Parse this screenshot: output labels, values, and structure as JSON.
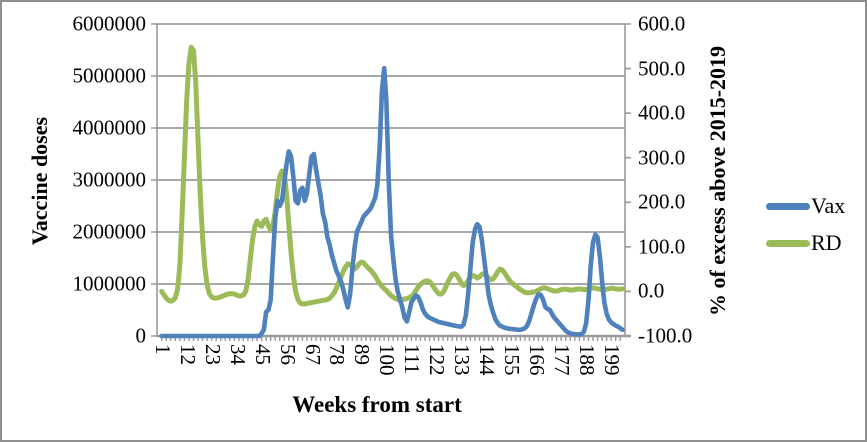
{
  "figure": {
    "kind": "embedded-excel-line-chart",
    "background": "#ffffff",
    "border_color": "#8f8f8f"
  },
  "colors": {
    "vax_line": "#4F81BD",
    "rd_line": "#9BBB59",
    "grid": "#8c8c8c",
    "axis": "#9a9a9a",
    "text": "#000000"
  },
  "legend": {
    "position": "right",
    "entries": [
      {
        "label": "Vax",
        "color": "#4F81BD"
      },
      {
        "label": "RD",
        "color": "#9BBB59"
      }
    ]
  },
  "chart_data": {
    "type": "line",
    "title": "",
    "xlabel": "Weeks from start",
    "ylabel_left": "Vaccine doses",
    "ylabel_right": "% of excess above 2015-2019",
    "grid": "horizontal-only",
    "legend_position": "right",
    "x_axis": {
      "start_week": 1,
      "end_week": 204,
      "interval": 1,
      "tick_labels": [
        "1",
        "12",
        "23",
        "34",
        "45",
        "56",
        "67",
        "78",
        "89",
        "100",
        "111",
        "122",
        "133",
        "144",
        "155",
        "166",
        "177",
        "188",
        "199"
      ]
    },
    "left_axis": {
      "min": 0,
      "max": 6000000,
      "tick_step": 1000000,
      "tick_labels": [
        "0",
        "1000000",
        "2000000",
        "3000000",
        "4000000",
        "5000000",
        "6000000"
      ]
    },
    "right_axis": {
      "min": -100,
      "max": 600,
      "tick_step": 100,
      "tick_labels": [
        "-100.0",
        "0.0",
        "100.0",
        "200.0",
        "300.0",
        "400.0",
        "500.0",
        "600.0"
      ]
    },
    "series": [
      {
        "name": "Vax",
        "axis": "left",
        "color": "#4F81BD",
        "values": [
          0,
          0,
          0,
          0,
          0,
          0,
          0,
          0,
          0,
          0,
          0,
          0,
          0,
          0,
          0,
          0,
          0,
          0,
          0,
          0,
          0,
          0,
          0,
          0,
          0,
          0,
          0,
          0,
          0,
          0,
          0,
          0,
          0,
          0,
          0,
          0,
          0,
          0,
          0,
          0,
          0,
          0,
          0,
          0,
          50000,
          120000,
          460000,
          500000,
          700000,
          1500000,
          2250000,
          2600000,
          2500000,
          2600000,
          2950000,
          3300000,
          3550000,
          3450000,
          3050000,
          2600000,
          2550000,
          2800000,
          2850000,
          2600000,
          2750000,
          3100000,
          3450000,
          3500000,
          3200000,
          2950000,
          2700000,
          2350000,
          2200000,
          1900000,
          1750000,
          1550000,
          1400000,
          1250000,
          1150000,
          1050000,
          900000,
          700000,
          550000,
          800000,
          1300000,
          1700000,
          2000000,
          2100000,
          2200000,
          2300000,
          2350000,
          2400000,
          2450000,
          2550000,
          2650000,
          2900000,
          3600000,
          4700000,
          5150000,
          4500000,
          3000000,
          1950000,
          1500000,
          1100000,
          850000,
          700000,
          550000,
          350000,
          280000,
          450000,
          650000,
          720000,
          780000,
          750000,
          650000,
          520000,
          430000,
          380000,
          350000,
          330000,
          310000,
          290000,
          270000,
          260000,
          250000,
          240000,
          230000,
          220000,
          210000,
          200000,
          190000,
          185000,
          180000,
          220000,
          400000,
          800000,
          1300000,
          1800000,
          2050000,
          2150000,
          2100000,
          1850000,
          1500000,
          1150000,
          800000,
          600000,
          450000,
          320000,
          250000,
          200000,
          180000,
          160000,
          150000,
          140000,
          135000,
          130000,
          125000,
          120000,
          120000,
          130000,
          150000,
          200000,
          300000,
          450000,
          600000,
          720000,
          800000,
          790000,
          700000,
          560000,
          520000,
          500000,
          420000,
          350000,
          300000,
          250000,
          200000,
          150000,
          100000,
          70000,
          50000,
          40000,
          35000,
          30000,
          30000,
          40000,
          80000,
          250000,
          700000,
          1350000,
          1800000,
          1950000,
          1900000,
          1550000,
          1050000,
          650000,
          430000,
          320000,
          260000,
          230000,
          200000,
          180000,
          150000,
          120000
        ]
      },
      {
        "name": "RD",
        "axis": "right",
        "color": "#9BBB59",
        "values": [
          0,
          -8,
          -15,
          -20,
          -22,
          -20,
          -14,
          5,
          60,
          170,
          300,
          430,
          510,
          548,
          540,
          470,
          340,
          215,
          120,
          55,
          15,
          -5,
          -12,
          -15,
          -15,
          -14,
          -12,
          -10,
          -8,
          -6,
          -5,
          -5,
          -6,
          -8,
          -10,
          -10,
          -8,
          0,
          25,
          70,
          115,
          145,
          158,
          150,
          146,
          158,
          162,
          148,
          136,
          146,
          180,
          225,
          258,
          270,
          262,
          220,
          150,
          85,
          35,
          0,
          -18,
          -26,
          -28,
          -28,
          -27,
          -26,
          -25,
          -24,
          -23,
          -22,
          -21,
          -20,
          -19,
          -18,
          -15,
          -10,
          -3,
          8,
          20,
          32,
          45,
          55,
          62,
          60,
          54,
          50,
          55,
          62,
          66,
          64,
          58,
          52,
          48,
          42,
          35,
          26,
          18,
          12,
          6,
          2,
          -4,
          -9,
          -13,
          -16,
          -18,
          -19,
          -18,
          -17,
          -16,
          -14,
          -11,
          -6,
          2,
          10,
          16,
          20,
          23,
          24,
          22,
          16,
          8,
          1,
          -5,
          -6,
          -2,
          8,
          20,
          30,
          38,
          40,
          36,
          28,
          18,
          13,
          16,
          24,
          32,
          36,
          34,
          30,
          33,
          38,
          40,
          36,
          30,
          26,
          28,
          35,
          44,
          50,
          48,
          42,
          34,
          26,
          20,
          16,
          12,
          8,
          4,
          1,
          -2,
          -3,
          -3,
          -2,
          -1,
          0,
          3,
          6,
          8,
          8,
          6,
          4,
          2,
          1,
          1,
          2,
          4,
          5,
          5,
          4,
          3,
          3,
          4,
          5,
          6,
          5,
          4,
          4,
          5,
          7,
          8,
          7,
          6,
          5,
          4,
          4,
          5,
          6,
          7,
          7,
          6,
          5,
          5,
          6
        ]
      }
    ]
  }
}
